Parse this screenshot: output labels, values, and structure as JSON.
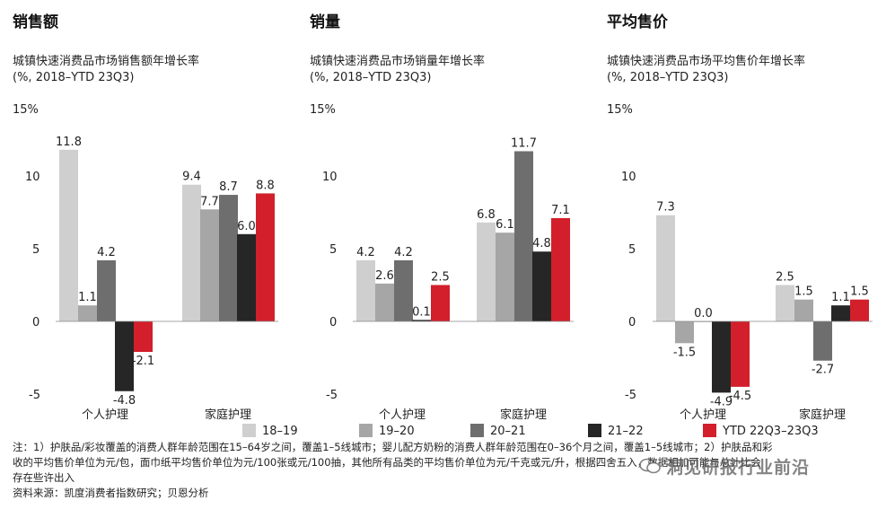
{
  "colors": {
    "18–19": "#cfcfcf",
    "19–20": "#a6a6a6",
    "20–21": "#6e6e6e",
    "21–22": "#262626",
    "YTD 22Q3–23Q3": "#d21f2b"
  },
  "legend": [
    "18–19",
    "19–20",
    "20–21",
    "21–22",
    "YTD 22Q3–23Q3"
  ],
  "chart_data": [
    {
      "type": "bar",
      "title": "销售额",
      "subtitle_line1": "城镇快速消费品市场销售额年增长率",
      "subtitle_line2": "(%, 2018–YTD 23Q3)",
      "ymax_label": "15%",
      "yticks": [
        "10",
        "5",
        "0",
        "-5"
      ],
      "ylim": [
        -5,
        15
      ],
      "categories": [
        "个人护理",
        "家庭护理"
      ],
      "series": [
        {
          "name": "18–19",
          "values": [
            11.8,
            9.4
          ]
        },
        {
          "name": "19–20",
          "values": [
            1.1,
            7.7
          ]
        },
        {
          "name": "20–21",
          "values": [
            4.2,
            8.7
          ]
        },
        {
          "name": "21–22",
          "values": [
            -4.8,
            6.0
          ]
        },
        {
          "name": "YTD 22Q3–23Q3",
          "values": [
            -2.1,
            8.8
          ]
        }
      ],
      "labels": [
        [
          "11.8",
          "1.1",
          "4.2",
          "-4.8",
          "-2.1"
        ],
        [
          "9.4",
          "7.7",
          "8.7",
          "6.0",
          "8.8"
        ]
      ]
    },
    {
      "type": "bar",
      "title": "销量",
      "subtitle_line1": "城镇快速消费品市场销量年增长率",
      "subtitle_line2": "(%, 2018–YTD 23Q3)",
      "ymax_label": "15%",
      "yticks": [
        "10",
        "5",
        "0",
        "-5"
      ],
      "ylim": [
        -5,
        15
      ],
      "categories": [
        "个人护理",
        "家庭护理"
      ],
      "series": [
        {
          "name": "18–19",
          "values": [
            4.2,
            6.8
          ]
        },
        {
          "name": "19–20",
          "values": [
            2.6,
            6.1
          ]
        },
        {
          "name": "20–21",
          "values": [
            4.2,
            11.7
          ]
        },
        {
          "name": "21–22",
          "values": [
            0.1,
            4.8
          ]
        },
        {
          "name": "YTD 22Q3–23Q3",
          "values": [
            2.5,
            7.1
          ]
        }
      ],
      "labels": [
        [
          "4.2",
          "2.6",
          "4.2",
          "0.1",
          "2.5"
        ],
        [
          "6.8",
          "6.1",
          "11.7",
          "4.8",
          "7.1"
        ]
      ]
    },
    {
      "type": "bar",
      "title": "平均售价",
      "subtitle_line1": "城镇快速消费品市场平均售价年增长率",
      "subtitle_line2": "(%, 2018–YTD 23Q3)",
      "ymax_label": "15%",
      "yticks": [
        "10",
        "5",
        "0",
        "-5"
      ],
      "ylim": [
        -5,
        15
      ],
      "categories": [
        "个人护理",
        "家庭护理"
      ],
      "series": [
        {
          "name": "18–19",
          "values": [
            7.3,
            2.5
          ]
        },
        {
          "name": "19–20",
          "values": [
            -1.5,
            1.5
          ]
        },
        {
          "name": "20–21",
          "values": [
            0.0,
            -2.7
          ]
        },
        {
          "name": "21–22",
          "values": [
            -4.9,
            1.1
          ]
        },
        {
          "name": "YTD 22Q3–23Q3",
          "values": [
            -4.5,
            1.5
          ]
        }
      ],
      "labels": [
        [
          "7.3",
          "-1.5",
          "0.0",
          "-4.9",
          "-4.5"
        ],
        [
          "2.5",
          "1.5",
          "-2.7",
          "1.1",
          "1.5"
        ]
      ]
    }
  ],
  "notes": {
    "line1": "注：1）护肤品/彩妆覆盖的消费人群年龄范围在15–64岁之间，覆盖1–5线城市；婴儿配方奶粉的消费人群年龄范围在0–36个月之间，覆盖1–5线城市；2）护肤品和彩",
    "line2": "收的平均售价单位为元/包，面巾纸平均售价单位为元/100张或元/100抽，其他所有品类的平均售价单位为元/千克或元/升，根据四舍五入，数据相加可能与总计比会",
    "line3": "存在些许出入",
    "source": "资料来源：凯度消费者指数研究；贝恩分析"
  },
  "watermark": "洞见研报行业前沿"
}
